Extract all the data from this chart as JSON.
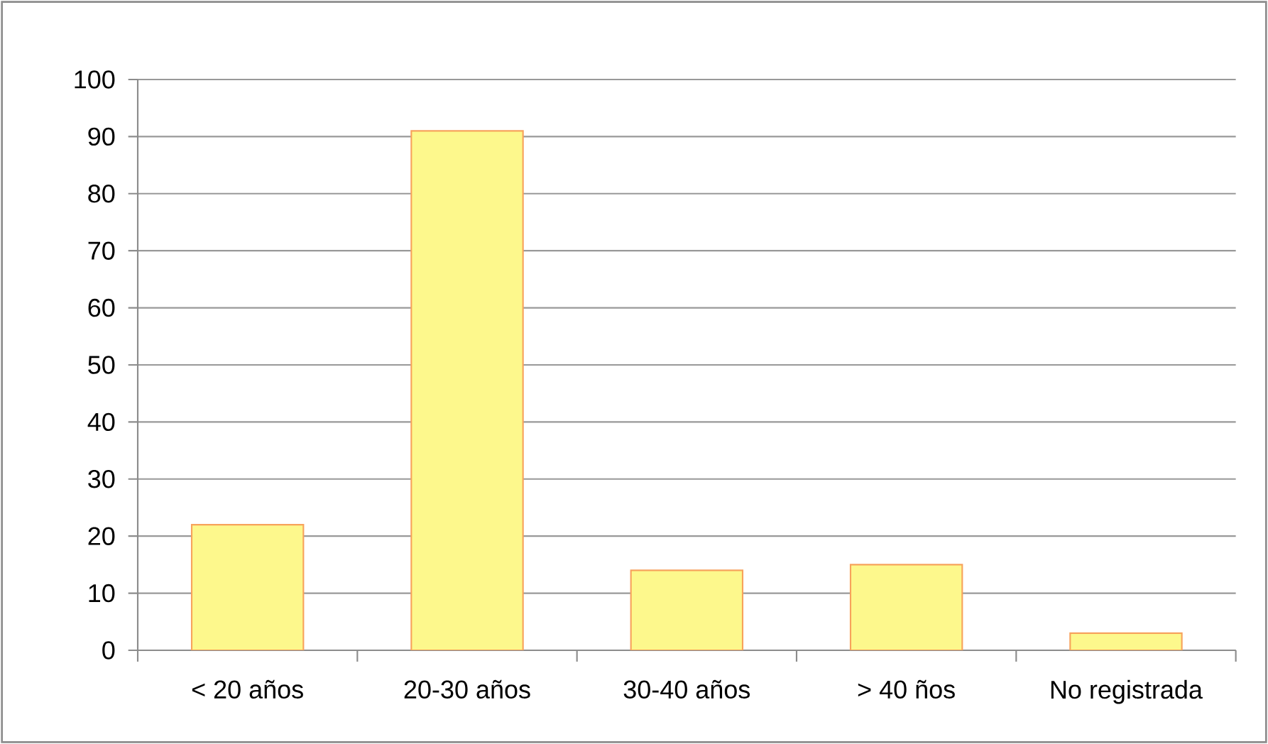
{
  "chart_data": {
    "type": "bar",
    "categories": [
      "< 20 años",
      "20-30 años",
      "30-40 años",
      "> 40 ños",
      "No registrada"
    ],
    "values": [
      22,
      91,
      14,
      15,
      3
    ],
    "color": "#fdf88c",
    "ylim": [
      0,
      100
    ],
    "yticks": [
      0,
      10,
      20,
      30,
      40,
      50,
      60,
      70,
      80,
      90,
      100
    ],
    "grid": "y"
  }
}
